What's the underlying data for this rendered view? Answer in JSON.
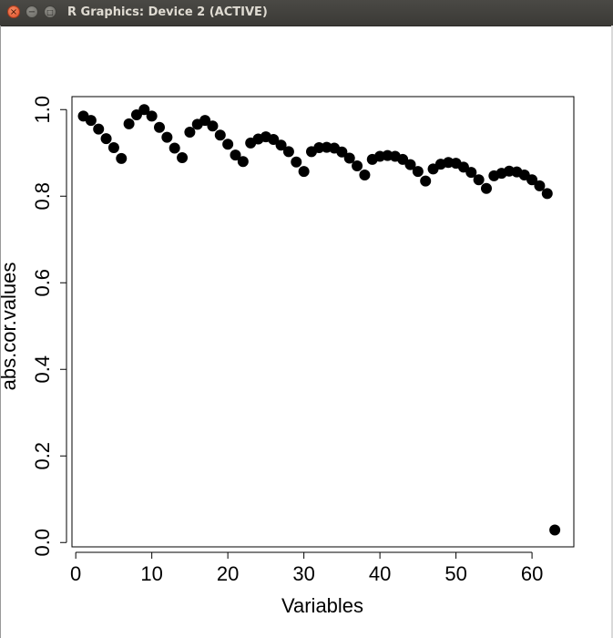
{
  "window": {
    "title": "R Graphics: Device 2 (ACTIVE)",
    "close_icon": "×",
    "minimize_icon": "−",
    "maximize_icon": "□"
  },
  "chart_data": {
    "type": "scatter",
    "title": "",
    "xlabel": "Variables",
    "ylabel": "abs.cor.values",
    "xlim": [
      -0.5,
      65.5
    ],
    "ylim": [
      -0.01,
      1.03
    ],
    "xticks": [
      0,
      10,
      20,
      30,
      40,
      50,
      60
    ],
    "yticks": [
      0.0,
      0.2,
      0.4,
      0.6,
      0.8,
      1.0
    ],
    "xtick_labels": [
      "0",
      "10",
      "20",
      "30",
      "40",
      "50",
      "60"
    ],
    "ytick_labels": [
      "0.0",
      "0.2",
      "0.4",
      "0.6",
      "0.8",
      "1.0"
    ],
    "grid": false,
    "marker": "filled-circle",
    "color": "#000000",
    "points": [
      [
        1,
        0.985
      ],
      [
        2,
        0.975
      ],
      [
        3,
        0.955
      ],
      [
        4,
        0.933
      ],
      [
        5,
        0.912
      ],
      [
        6,
        0.887
      ],
      [
        7,
        0.967
      ],
      [
        8,
        0.988
      ],
      [
        9,
        1.0
      ],
      [
        10,
        0.985
      ],
      [
        11,
        0.959
      ],
      [
        12,
        0.936
      ],
      [
        13,
        0.911
      ],
      [
        14,
        0.889
      ],
      [
        15,
        0.948
      ],
      [
        16,
        0.966
      ],
      [
        17,
        0.975
      ],
      [
        18,
        0.962
      ],
      [
        19,
        0.941
      ],
      [
        20,
        0.92
      ],
      [
        21,
        0.895
      ],
      [
        22,
        0.88
      ],
      [
        23,
        0.923
      ],
      [
        24,
        0.932
      ],
      [
        25,
        0.937
      ],
      [
        26,
        0.931
      ],
      [
        27,
        0.918
      ],
      [
        28,
        0.903
      ],
      [
        29,
        0.879
      ],
      [
        30,
        0.857
      ],
      [
        31,
        0.903
      ],
      [
        32,
        0.912
      ],
      [
        33,
        0.913
      ],
      [
        34,
        0.911
      ],
      [
        35,
        0.902
      ],
      [
        36,
        0.888
      ],
      [
        37,
        0.87
      ],
      [
        38,
        0.849
      ],
      [
        39,
        0.885
      ],
      [
        40,
        0.892
      ],
      [
        41,
        0.894
      ],
      [
        42,
        0.892
      ],
      [
        43,
        0.885
      ],
      [
        44,
        0.873
      ],
      [
        45,
        0.857
      ],
      [
        46,
        0.835
      ],
      [
        47,
        0.863
      ],
      [
        48,
        0.874
      ],
      [
        49,
        0.878
      ],
      [
        50,
        0.876
      ],
      [
        51,
        0.867
      ],
      [
        52,
        0.855
      ],
      [
        53,
        0.838
      ],
      [
        54,
        0.818
      ],
      [
        55,
        0.847
      ],
      [
        56,
        0.853
      ],
      [
        57,
        0.858
      ],
      [
        58,
        0.856
      ],
      [
        59,
        0.849
      ],
      [
        60,
        0.838
      ],
      [
        61,
        0.824
      ],
      [
        62,
        0.806
      ],
      [
        63,
        0.029
      ]
    ]
  }
}
